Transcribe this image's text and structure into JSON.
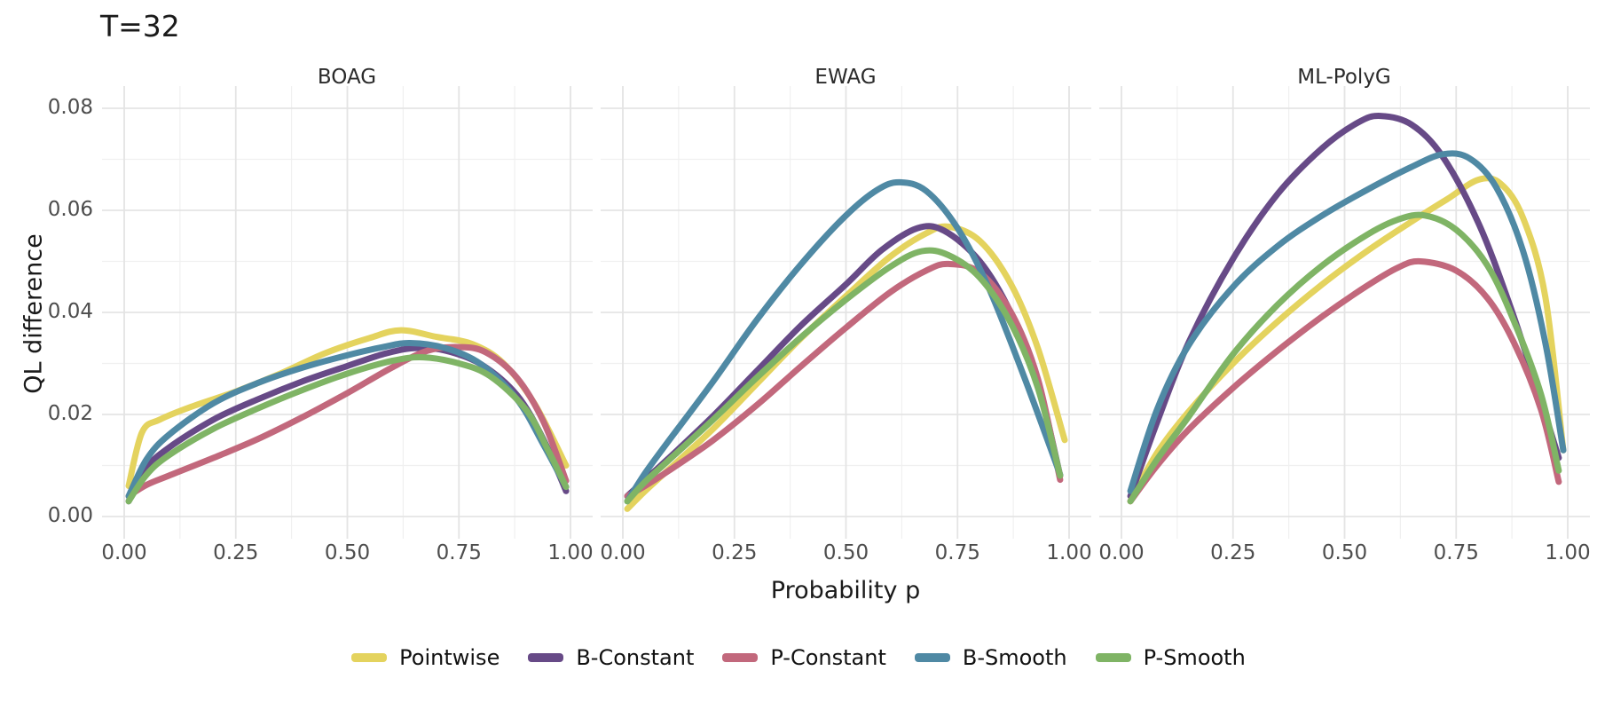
{
  "title": "T=32",
  "y_axis_title": "QL difference",
  "x_axis_title": "Probability p",
  "legend": {
    "position": "bottom",
    "items": [
      {
        "label": "Pointwise",
        "color": "#e4d35e"
      },
      {
        "label": "B-Constant",
        "color": "#674a87"
      },
      {
        "label": "P-Constant",
        "color": "#c2687c"
      },
      {
        "label": "B-Smooth",
        "color": "#4f89a4"
      },
      {
        "label": "P-Smooth",
        "color": "#7fb465"
      }
    ]
  },
  "chart_data": {
    "type": "line",
    "title": "T=32",
    "xlabel": "Probability p",
    "ylabel": "QL difference",
    "facets": [
      "BOAG",
      "EWAG",
      "ML-PolyG"
    ],
    "xlim": [
      0,
      1
    ],
    "ylim": [
      0,
      0.08
    ],
    "grid": "major-and-minor",
    "legend_position": "bottom",
    "x_major_ticks": [
      "0.00",
      "0.25",
      "0.50",
      "0.75",
      "1.00"
    ],
    "x_tick_values": [
      0,
      0.25,
      0.5,
      0.75,
      1.0
    ],
    "x_minor_values": [
      0.125,
      0.375,
      0.625,
      0.875
    ],
    "y_major_ticks": [
      "0.00",
      "0.02",
      "0.04",
      "0.06",
      "0.08"
    ],
    "y_tick_values": [
      0,
      0.02,
      0.04,
      0.06,
      0.08
    ],
    "y_minor_values": [
      0.01,
      0.03,
      0.05,
      0.07
    ],
    "panels": [
      {
        "facet": "BOAG",
        "series": [
          {
            "name": "Pointwise",
            "points": [
              [
                0.01,
                0.006
              ],
              [
                0.04,
                0.0165
              ],
              [
                0.08,
                0.019
              ],
              [
                0.15,
                0.0215
              ],
              [
                0.25,
                0.0245
              ],
              [
                0.35,
                0.028
              ],
              [
                0.45,
                0.032
              ],
              [
                0.55,
                0.035
              ],
              [
                0.62,
                0.0365
              ],
              [
                0.7,
                0.0352
              ],
              [
                0.78,
                0.0338
              ],
              [
                0.85,
                0.03
              ],
              [
                0.92,
                0.022
              ],
              [
                0.99,
                0.01
              ]
            ]
          },
          {
            "name": "B-Constant",
            "points": [
              [
                0.01,
                0.003
              ],
              [
                0.05,
                0.0095
              ],
              [
                0.1,
                0.0135
              ],
              [
                0.2,
                0.019
              ],
              [
                0.3,
                0.023
              ],
              [
                0.4,
                0.0265
              ],
              [
                0.5,
                0.0295
              ],
              [
                0.58,
                0.0318
              ],
              [
                0.65,
                0.033
              ],
              [
                0.72,
                0.0325
              ],
              [
                0.8,
                0.0298
              ],
              [
                0.88,
                0.0238
              ],
              [
                0.94,
                0.015
              ],
              [
                0.99,
                0.005
              ]
            ]
          },
          {
            "name": "P-Constant",
            "points": [
              [
                0.01,
                0.004
              ],
              [
                0.05,
                0.0062
              ],
              [
                0.1,
                0.008
              ],
              [
                0.2,
                0.0115
              ],
              [
                0.3,
                0.0152
              ],
              [
                0.4,
                0.0195
              ],
              [
                0.5,
                0.0242
              ],
              [
                0.6,
                0.0292
              ],
              [
                0.68,
                0.0325
              ],
              [
                0.75,
                0.0332
              ],
              [
                0.81,
                0.0322
              ],
              [
                0.88,
                0.0272
              ],
              [
                0.94,
                0.0185
              ],
              [
                0.99,
                0.007
              ]
            ]
          },
          {
            "name": "B-Smooth",
            "points": [
              [
                0.01,
                0.004
              ],
              [
                0.05,
                0.0112
              ],
              [
                0.1,
                0.016
              ],
              [
                0.2,
                0.0222
              ],
              [
                0.3,
                0.0262
              ],
              [
                0.4,
                0.0292
              ],
              [
                0.5,
                0.0316
              ],
              [
                0.58,
                0.0332
              ],
              [
                0.64,
                0.034
              ],
              [
                0.72,
                0.033
              ],
              [
                0.8,
                0.0298
              ],
              [
                0.88,
                0.023
              ],
              [
                0.94,
                0.014
              ],
              [
                0.99,
                0.0058
              ]
            ]
          },
          {
            "name": "P-Smooth",
            "points": [
              [
                0.01,
                0.003
              ],
              [
                0.05,
                0.0082
              ],
              [
                0.1,
                0.012
              ],
              [
                0.2,
                0.0172
              ],
              [
                0.3,
                0.0212
              ],
              [
                0.4,
                0.0248
              ],
              [
                0.5,
                0.028
              ],
              [
                0.6,
                0.0305
              ],
              [
                0.67,
                0.0312
              ],
              [
                0.75,
                0.03
              ],
              [
                0.82,
                0.0275
              ],
              [
                0.9,
                0.021
              ],
              [
                0.95,
                0.013
              ],
              [
                0.99,
                0.0058
              ]
            ]
          }
        ]
      },
      {
        "facet": "EWAG",
        "series": [
          {
            "name": "Pointwise",
            "points": [
              [
                0.01,
                0.0015
              ],
              [
                0.05,
                0.005
              ],
              [
                0.1,
                0.009
              ],
              [
                0.2,
                0.017
              ],
              [
                0.3,
                0.026
              ],
              [
                0.4,
                0.035
              ],
              [
                0.5,
                0.0432
              ],
              [
                0.6,
                0.051
              ],
              [
                0.68,
                0.0555
              ],
              [
                0.73,
                0.0568
              ],
              [
                0.8,
                0.054
              ],
              [
                0.87,
                0.0455
              ],
              [
                0.93,
                0.033
              ],
              [
                0.99,
                0.015
              ]
            ]
          },
          {
            "name": "B-Constant",
            "points": [
              [
                0.01,
                0.004
              ],
              [
                0.05,
                0.0072
              ],
              [
                0.1,
                0.0112
              ],
              [
                0.2,
                0.0195
              ],
              [
                0.3,
                0.0285
              ],
              [
                0.4,
                0.0375
              ],
              [
                0.5,
                0.0455
              ],
              [
                0.58,
                0.0522
              ],
              [
                0.66,
                0.0565
              ],
              [
                0.72,
                0.056
              ],
              [
                0.8,
                0.05
              ],
              [
                0.87,
                0.0398
              ],
              [
                0.93,
                0.0262
              ],
              [
                0.98,
                0.008
              ]
            ]
          },
          {
            "name": "P-Constant",
            "points": [
              [
                0.01,
                0.004
              ],
              [
                0.05,
                0.006
              ],
              [
                0.1,
                0.0088
              ],
              [
                0.2,
                0.0148
              ],
              [
                0.3,
                0.0218
              ],
              [
                0.4,
                0.0295
              ],
              [
                0.5,
                0.037
              ],
              [
                0.6,
                0.044
              ],
              [
                0.68,
                0.0482
              ],
              [
                0.73,
                0.0495
              ],
              [
                0.8,
                0.0478
              ],
              [
                0.87,
                0.04
              ],
              [
                0.93,
                0.027
              ],
              [
                0.98,
                0.0072
              ]
            ]
          },
          {
            "name": "B-Smooth",
            "points": [
              [
                0.01,
                0.003
              ],
              [
                0.05,
                0.0085
              ],
              [
                0.1,
                0.0145
              ],
              [
                0.2,
                0.0262
              ],
              [
                0.3,
                0.0385
              ],
              [
                0.4,
                0.0495
              ],
              [
                0.5,
                0.059
              ],
              [
                0.57,
                0.064
              ],
              [
                0.62,
                0.0655
              ],
              [
                0.68,
                0.0638
              ],
              [
                0.75,
                0.0565
              ],
              [
                0.82,
                0.0448
              ],
              [
                0.9,
                0.0272
              ],
              [
                0.98,
                0.0082
              ]
            ]
          },
          {
            "name": "P-Smooth",
            "points": [
              [
                0.01,
                0.003
              ],
              [
                0.05,
                0.0068
              ],
              [
                0.1,
                0.0108
              ],
              [
                0.2,
                0.0188
              ],
              [
                0.3,
                0.0272
              ],
              [
                0.4,
                0.0352
              ],
              [
                0.5,
                0.0425
              ],
              [
                0.6,
                0.049
              ],
              [
                0.67,
                0.052
              ],
              [
                0.73,
                0.0512
              ],
              [
                0.8,
                0.0468
              ],
              [
                0.87,
                0.0378
              ],
              [
                0.93,
                0.0252
              ],
              [
                0.98,
                0.008
              ]
            ]
          }
        ]
      },
      {
        "facet": "ML-PolyG",
        "series": [
          {
            "name": "Pointwise",
            "points": [
              [
                0.02,
                0.003
              ],
              [
                0.08,
                0.0125
              ],
              [
                0.15,
                0.0205
              ],
              [
                0.25,
                0.03
              ],
              [
                0.35,
                0.0382
              ],
              [
                0.45,
                0.0455
              ],
              [
                0.55,
                0.052
              ],
              [
                0.65,
                0.0578
              ],
              [
                0.73,
                0.0622
              ],
              [
                0.8,
                0.066
              ],
              [
                0.85,
                0.0652
              ],
              [
                0.9,
                0.0585
              ],
              [
                0.95,
                0.043
              ],
              [
                0.99,
                0.013
              ]
            ]
          },
          {
            "name": "B-Constant",
            "points": [
              [
                0.02,
                0.004
              ],
              [
                0.08,
                0.0185
              ],
              [
                0.15,
                0.034
              ],
              [
                0.25,
                0.0505
              ],
              [
                0.35,
                0.0632
              ],
              [
                0.45,
                0.0722
              ],
              [
                0.53,
                0.0772
              ],
              [
                0.58,
                0.0785
              ],
              [
                0.65,
                0.0768
              ],
              [
                0.72,
                0.0705
              ],
              [
                0.8,
                0.0575
              ],
              [
                0.87,
                0.0415
              ],
              [
                0.93,
                0.0255
              ],
              [
                0.98,
                0.0115
              ]
            ]
          },
          {
            "name": "P-Constant",
            "points": [
              [
                0.02,
                0.003
              ],
              [
                0.08,
                0.01
              ],
              [
                0.15,
                0.017
              ],
              [
                0.25,
                0.0252
              ],
              [
                0.35,
                0.0325
              ],
              [
                0.45,
                0.0392
              ],
              [
                0.55,
                0.0452
              ],
              [
                0.62,
                0.0488
              ],
              [
                0.67,
                0.05
              ],
              [
                0.75,
                0.0482
              ],
              [
                0.82,
                0.0428
              ],
              [
                0.88,
                0.034
              ],
              [
                0.94,
                0.021
              ],
              [
                0.98,
                0.0068
              ]
            ]
          },
          {
            "name": "B-Smooth",
            "points": [
              [
                0.02,
                0.005
              ],
              [
                0.08,
                0.021
              ],
              [
                0.15,
                0.0335
              ],
              [
                0.25,
                0.045
              ],
              [
                0.35,
                0.053
              ],
              [
                0.45,
                0.059
              ],
              [
                0.55,
                0.064
              ],
              [
                0.65,
                0.0685
              ],
              [
                0.72,
                0.071
              ],
              [
                0.78,
                0.0702
              ],
              [
                0.84,
                0.0645
              ],
              [
                0.9,
                0.052
              ],
              [
                0.95,
                0.034
              ],
              [
                0.99,
                0.013
              ]
            ]
          },
          {
            "name": "P-Smooth",
            "points": [
              [
                0.02,
                0.003
              ],
              [
                0.08,
                0.0112
              ],
              [
                0.15,
                0.0195
              ],
              [
                0.25,
                0.0318
              ],
              [
                0.35,
                0.0415
              ],
              [
                0.45,
                0.0492
              ],
              [
                0.55,
                0.0552
              ],
              [
                0.62,
                0.0582
              ],
              [
                0.68,
                0.059
              ],
              [
                0.75,
                0.0562
              ],
              [
                0.82,
                0.0492
              ],
              [
                0.88,
                0.0382
              ],
              [
                0.94,
                0.024
              ],
              [
                0.98,
                0.009
              ]
            ]
          }
        ]
      }
    ],
    "style": {
      "grid_major_color": "#e4e4e4",
      "grid_minor_color": "#f0f0f0",
      "line_width": 7,
      "background": "#ffffff"
    }
  }
}
